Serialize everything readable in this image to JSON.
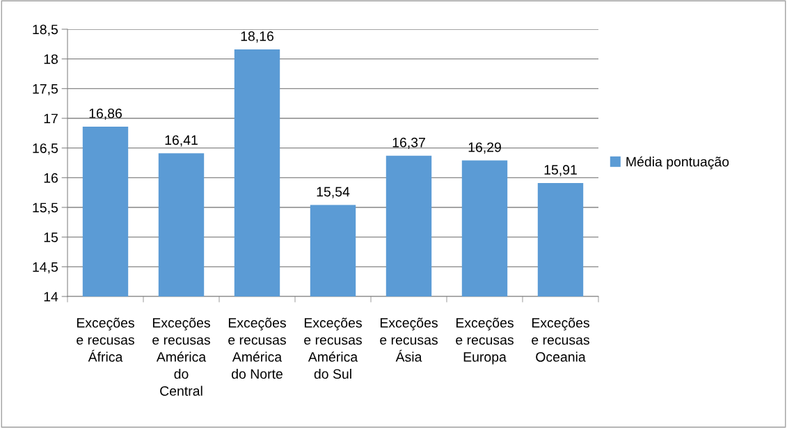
{
  "chart_data": {
    "type": "bar",
    "categories": [
      "Exceções\ne recusas\nÁfrica",
      "Exceções\ne recusas\nAmérica\ndo\nCentral",
      "Exceções\ne recusas\nAmérica\ndo Norte",
      "Exceções\ne recusas\nAmérica\ndo Sul",
      "Exceções\ne recusas\nÁsia",
      "Exceções\ne recusas\nEuropa",
      "Exceções\ne recusas\nOceania"
    ],
    "series": [
      {
        "name": "Média pontuação",
        "color": "#5b9bd5",
        "values": [
          16.86,
          16.41,
          18.16,
          15.54,
          16.37,
          16.29,
          15.91
        ],
        "value_labels": [
          "16,86",
          "16,41",
          "18,16",
          "15,54",
          "16,37",
          "16,29",
          "15,91"
        ]
      }
    ],
    "ylim": [
      14,
      18.5
    ],
    "yticks": [
      14,
      {
        "value": 14.5,
        "label": "14,5"
      },
      15,
      {
        "value": 15.5,
        "label": "15,5"
      },
      16,
      {
        "value": 16.5,
        "label": "16,5"
      },
      17,
      {
        "value": 17.5,
        "label": "17,5"
      },
      18,
      {
        "value": 18.5,
        "label": "18,5"
      }
    ],
    "grid": "y",
    "legend": "right"
  }
}
